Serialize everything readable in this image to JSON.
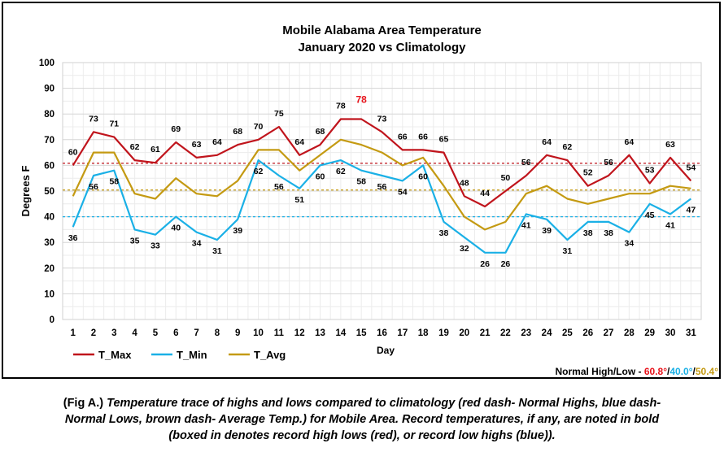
{
  "chart_data": {
    "type": "line",
    "title": "Mobile Alabama Area Temperature",
    "subtitle": "January 2020 vs Climatology",
    "xlabel": "Day",
    "ylabel": "Degrees F",
    "ylim": [
      0,
      100
    ],
    "yticks": [
      0,
      10,
      20,
      30,
      40,
      50,
      60,
      70,
      80,
      90,
      100
    ],
    "x": [
      1,
      2,
      3,
      4,
      5,
      6,
      7,
      8,
      9,
      10,
      11,
      12,
      13,
      14,
      15,
      16,
      17,
      18,
      19,
      20,
      21,
      22,
      23,
      24,
      25,
      26,
      27,
      28,
      29,
      30,
      31
    ],
    "series": [
      {
        "name": "T_Max",
        "color": "#c0141c",
        "values": [
          60,
          73,
          71,
          62,
          61,
          69,
          63,
          64,
          68,
          70,
          75,
          64,
          68,
          78,
          78,
          73,
          66,
          66,
          65,
          48,
          44,
          50,
          56,
          64,
          62,
          52,
          56,
          64,
          53,
          63,
          54
        ]
      },
      {
        "name": "T_Min",
        "color": "#1ab0e6",
        "values": [
          36,
          56,
          58,
          35,
          33,
          40,
          34,
          31,
          39,
          62,
          56,
          51,
          60,
          62,
          58,
          56,
          54,
          60,
          38,
          32,
          26,
          26,
          41,
          39,
          31,
          38,
          38,
          34,
          45,
          41,
          47
        ]
      },
      {
        "name": "T_Avg",
        "color": "#c49a12",
        "values": [
          48,
          65,
          65,
          49,
          47,
          55,
          49,
          48,
          54,
          66,
          66,
          58,
          64,
          70,
          68,
          65,
          60,
          63,
          52,
          40,
          35,
          38,
          49,
          52,
          47,
          45,
          47,
          49,
          49,
          52,
          51
        ]
      }
    ],
    "record_label": {
      "day": 15,
      "text": "78",
      "color": "#e8141c"
    },
    "reference_lines": [
      {
        "name": "Normal High",
        "value": 60.8,
        "color": "#c0141c"
      },
      {
        "name": "Normal Low",
        "value": 40.0,
        "color": "#1ab0e6"
      },
      {
        "name": "Average Temp",
        "value": 50.4,
        "color": "#c49a12"
      }
    ],
    "normals_note": {
      "prefix": "Normal High/Low - ",
      "high": "60.8°",
      "sep1": "/",
      "low": "40.0°",
      "sep2": "/",
      "avg": "50.4°",
      "high_color": "#e8141c",
      "low_color": "#1ab0e6",
      "avg_color": "#c49a12"
    },
    "grid": true,
    "legend_position": "bottom-left"
  },
  "caption": {
    "lead": "(Fig A.) ",
    "rest": "Temperature trace of highs and lows compared to climatology (red dash- Normal Highs, blue dash- Normal Lows, brown dash- Average Temp.) for Mobile Area. Record temperatures, if any, are noted in bold (boxed in denotes record high lows (red), or record low highs (blue))."
  }
}
